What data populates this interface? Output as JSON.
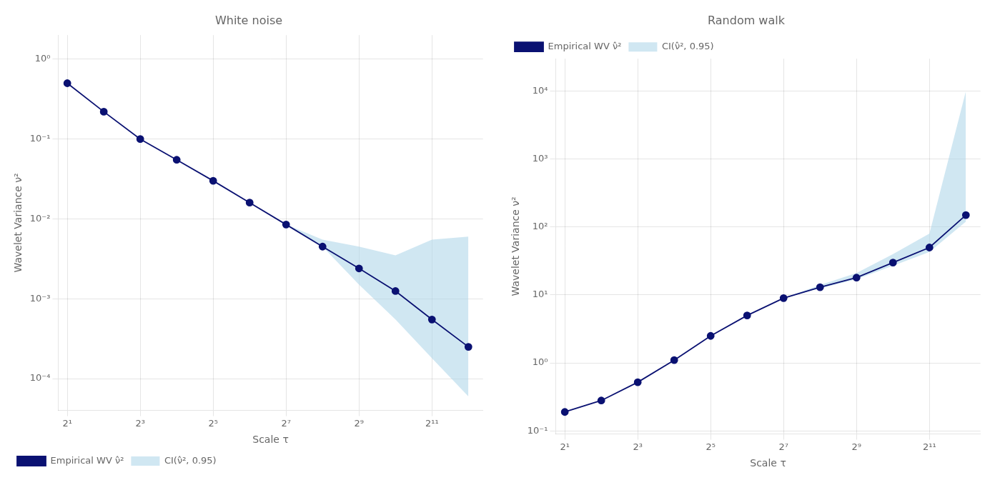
{
  "chart_data": [
    {
      "type": "line",
      "title": "White noise",
      "x_label": "Scale τ",
      "y_label": "Wavelet Variance ν²",
      "log": true,
      "grid": true,
      "legend": "lower left",
      "x": [
        2,
        4,
        8,
        16,
        32,
        64,
        128,
        256,
        512,
        1024,
        2048,
        4096
      ],
      "series": [
        {
          "name": "Empirical WV ν̂²",
          "type": "line",
          "color": "#0a1172",
          "marker": "circle",
          "values": [
            0.5,
            0.22,
            0.1,
            0.055,
            0.03,
            0.016,
            0.0085,
            0.0045,
            0.0024,
            0.00125,
            0.00055,
            0.00025
          ]
        },
        {
          "name": "CI(ν̂², 0.95)",
          "type": "band",
          "color": "#aad4e8",
          "lower": [
            0.5,
            0.22,
            0.1,
            0.055,
            0.03,
            0.016,
            0.0085,
            0.0045,
            0.0015,
            0.00055,
            0.00018,
            6e-05
          ],
          "upper": [
            0.5,
            0.22,
            0.1,
            0.055,
            0.03,
            0.016,
            0.0085,
            0.0055,
            0.0045,
            0.0035,
            0.0055,
            0.006
          ]
        }
      ],
      "xlim": [
        1.681792830507429,
        5404.704402525774
      ],
      "xticks": [
        {
          "value": 2,
          "label": "2¹"
        },
        {
          "value": 8,
          "label": "2³"
        },
        {
          "value": 32,
          "label": "2⁵"
        },
        {
          "value": 128,
          "label": "2⁷"
        },
        {
          "value": 512,
          "label": "2⁹"
        },
        {
          "value": 2048,
          "label": "2¹¹"
        }
      ],
      "ylim": [
        4e-05,
        2.0
      ],
      "yticks": [
        {
          "value": 1,
          "label": "10⁰"
        },
        {
          "value": 0.1,
          "label": "10⁻¹"
        },
        {
          "value": 0.01,
          "label": "10⁻²"
        },
        {
          "value": 0.001,
          "label": "10⁻³"
        },
        {
          "value": 0.0001,
          "label": "10⁻⁴"
        }
      ]
    },
    {
      "type": "line",
      "title": "Random walk",
      "x_label": "Scale τ",
      "y_label": "Wavelet Variance ν²",
      "log": true,
      "grid": true,
      "legend": "upper left",
      "x": [
        2,
        4,
        8,
        16,
        32,
        64,
        128,
        256,
        512,
        1024,
        2048,
        4096
      ],
      "series": [
        {
          "name": "Empirical WV ν̂²",
          "type": "line",
          "color": "#0a1172",
          "marker": "circle",
          "values": [
            0.19,
            0.28,
            0.52,
            1.1,
            2.5,
            5.0,
            9.0,
            13.0,
            18.0,
            30.0,
            50.0,
            150.0
          ]
        },
        {
          "name": "CI(ν̂², 0.95)",
          "type": "band",
          "color": "#aad4e8",
          "lower": [
            0.19,
            0.28,
            0.52,
            1.1,
            2.5,
            5.0,
            9.0,
            12.5,
            17.0,
            27.0,
            43.0,
            120.0
          ],
          "upper": [
            0.19,
            0.28,
            0.52,
            1.1,
            2.5,
            5.0,
            9.0,
            14.0,
            21.0,
            40.0,
            80.0,
            10000.0
          ]
        }
      ],
      "xlim": [
        1.681792830507429,
        5404.704402525774
      ],
      "xticks": [
        {
          "value": 2,
          "label": "2¹"
        },
        {
          "value": 8,
          "label": "2³"
        },
        {
          "value": 32,
          "label": "2⁵"
        },
        {
          "value": 128,
          "label": "2⁷"
        },
        {
          "value": 512,
          "label": "2⁹"
        },
        {
          "value": 2048,
          "label": "2¹¹"
        }
      ],
      "ylim": [
        0.09,
        30000
      ],
      "yticks": [
        {
          "value": 0.1,
          "label": "10⁻¹"
        },
        {
          "value": 1,
          "label": "10⁰"
        },
        {
          "value": 10,
          "label": "10¹"
        },
        {
          "value": 100,
          "label": "10²"
        },
        {
          "value": 1000,
          "label": "10³"
        },
        {
          "value": 10000,
          "label": "10⁴"
        }
      ]
    }
  ]
}
